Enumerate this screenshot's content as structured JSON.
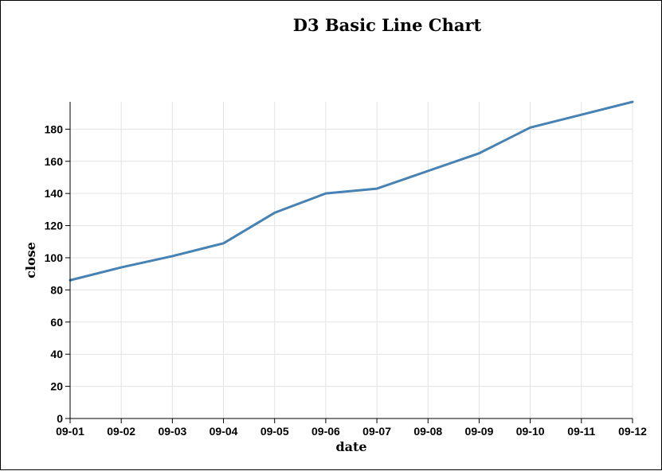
{
  "chart_data": {
    "type": "line",
    "title": "D3 Basic Line Chart",
    "xlabel": "date",
    "ylabel": "close",
    "x": [
      "09-01",
      "09-02",
      "09-03",
      "09-04",
      "09-05",
      "09-06",
      "09-07",
      "09-08",
      "09-09",
      "09-10",
      "09-11",
      "09-12"
    ],
    "series": [
      {
        "values": [
          86,
          94,
          101,
          109,
          128,
          140,
          143,
          154,
          165,
          181,
          189,
          197
        ]
      }
    ],
    "ylim": [
      0,
      197
    ],
    "yticks": [
      0,
      20,
      40,
      60,
      80,
      100,
      120,
      140,
      160,
      180
    ],
    "grid": true,
    "line_color": "#4682b4"
  }
}
